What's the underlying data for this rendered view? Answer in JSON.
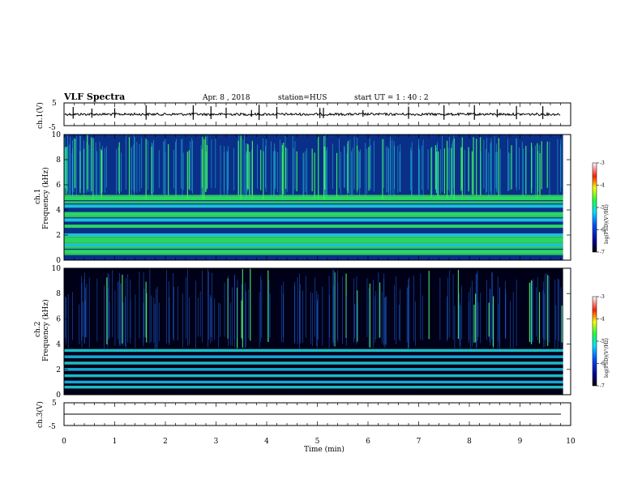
{
  "header": {
    "title": "VLF Spectra",
    "date": "Apr. 8 , 2018",
    "station": "station=HUS",
    "start": "start UT =  1 : 40 : 2"
  },
  "chart_data": [
    {
      "type": "line",
      "panel": "ch1-waveform",
      "ylabel": "ch.1(V)",
      "ylim": [
        -5,
        5
      ],
      "yticks": [
        "5",
        "-5"
      ],
      "xlim": [
        0,
        10
      ],
      "baseline_value": 0,
      "spikes_x": [
        0.18,
        0.55,
        1.0,
        1.62,
        2.55,
        2.9,
        3.2,
        3.7,
        3.85,
        4.2,
        5.05,
        5.12,
        5.9,
        6.8,
        7.5,
        8.1,
        8.55,
        8.93,
        9.45
      ]
    },
    {
      "type": "heatmap",
      "panel": "ch1-spectrogram",
      "ylabel_top": "ch.1",
      "ylabel": "Frequency (kHz)",
      "ylim": [
        0,
        10
      ],
      "yticks": [
        "0",
        "2",
        "4",
        "6",
        "8",
        "10"
      ],
      "xlim": [
        0,
        10
      ],
      "bands_khz": [
        0.7,
        1.2,
        1.6,
        2.0,
        2.7,
        3.2,
        3.7,
        4.3,
        4.9
      ]
    },
    {
      "type": "heatmap",
      "panel": "ch2-spectrogram",
      "ylabel_top": "ch.2",
      "ylabel": "Frequency (kHz)",
      "ylim": [
        0,
        10
      ],
      "yticks": [
        "0",
        "2",
        "4",
        "6",
        "8",
        "10"
      ],
      "xlim": [
        0,
        10
      ],
      "bands_khz": [
        0.6,
        1.0,
        1.5,
        2.0,
        2.5,
        3.0,
        3.5
      ]
    },
    {
      "type": "line",
      "panel": "ch3-waveform",
      "ylabel": "ch.3(V)",
      "ylim": [
        -5,
        5
      ],
      "yticks": [
        "5",
        "-5"
      ],
      "xlim": [
        0,
        10
      ],
      "baseline_value": 0
    }
  ],
  "colorbar": {
    "label": "log(PSD)(V²/Hz)",
    "ticks": [
      "-3",
      "-4",
      "-5",
      "-6",
      "-7"
    ],
    "range": [
      -7,
      -3
    ]
  },
  "xaxis": {
    "label": "Time (min)",
    "ticks": [
      "0",
      "1",
      "2",
      "3",
      "4",
      "5",
      "6",
      "7",
      "8",
      "9",
      "10"
    ]
  },
  "colors": {
    "background_ch2": "#000018",
    "band": "#19d6d6",
    "bright": "#2ef05a"
  }
}
